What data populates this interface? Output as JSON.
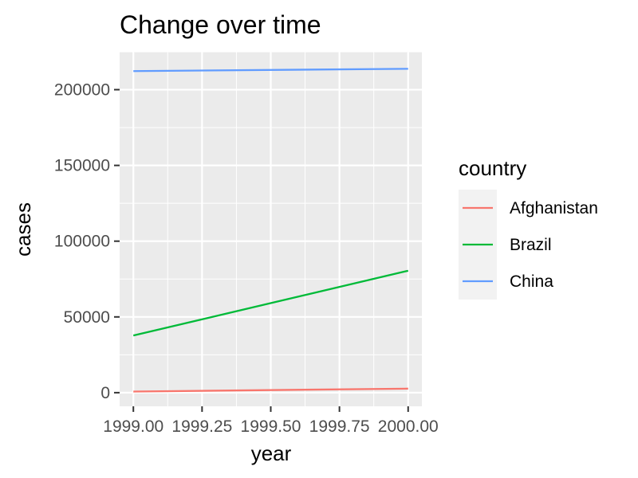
{
  "chart_data": {
    "type": "line",
    "title": "Change over time",
    "xlabel": "year",
    "ylabel": "cases",
    "xlim": [
      1998.95,
      2000.05
    ],
    "ylim": [
      -9000,
      225000
    ],
    "x_ticks": [
      1999.0,
      1999.25,
      1999.5,
      1999.75,
      2000.0
    ],
    "x_tick_labels": [
      "1999.00",
      "1999.25",
      "1999.50",
      "1999.75",
      "2000.00"
    ],
    "y_ticks": [
      0,
      50000,
      100000,
      150000,
      200000
    ],
    "y_tick_labels": [
      "0",
      "50000",
      "100000",
      "150000",
      "200000"
    ],
    "grid": true,
    "legend_title": "country",
    "legend_position": "right",
    "panel_background": "#ebebeb",
    "series": [
      {
        "name": "Afghanistan",
        "color": "#F8766D",
        "x": [
          1999,
          2000
        ],
        "y": [
          745,
          2666
        ]
      },
      {
        "name": "Brazil",
        "color": "#00BA38",
        "x": [
          1999,
          2000
        ],
        "y": [
          37737,
          80488
        ]
      },
      {
        "name": "China",
        "color": "#619CFF",
        "x": [
          1999,
          2000
        ],
        "y": [
          212258,
          213766
        ]
      }
    ]
  }
}
